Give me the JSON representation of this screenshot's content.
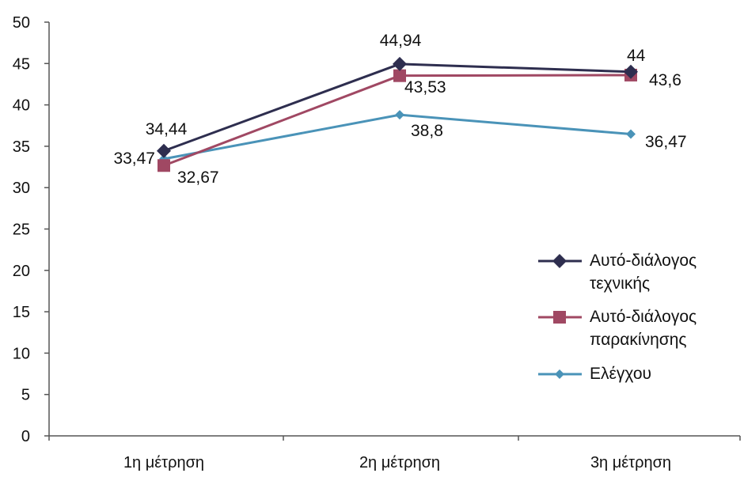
{
  "chart_data": {
    "type": "line",
    "categories": [
      "1η μέτρηση",
      "2η μέτρηση",
      "3η μέτρηση"
    ],
    "ylim": [
      0,
      50
    ],
    "yticks": [
      0,
      5,
      10,
      15,
      20,
      25,
      30,
      35,
      40,
      45,
      50
    ],
    "grid": false,
    "legend_position": "right",
    "series": [
      {
        "name_lines": [
          "Αυτό-διάλογος",
          "τεχνικής"
        ],
        "values": [
          34.44,
          44.94,
          44
        ],
        "labels": [
          "34,44",
          "44,94",
          "44"
        ],
        "color": "#2e2e4f",
        "marker": "diamond"
      },
      {
        "name_lines": [
          "Αυτό-διάλογος",
          "παρακίνησης"
        ],
        "values": [
          32.67,
          43.53,
          43.6
        ],
        "labels": [
          "32,67",
          "43,53",
          "43,6"
        ],
        "color": "#a04863",
        "marker": "square"
      },
      {
        "name_lines": [
          "Ελέγχου"
        ],
        "values": [
          33.47,
          38.8,
          36.47
        ],
        "labels": [
          "33,47",
          "38,8",
          "36,47"
        ],
        "color": "#4a93b8",
        "marker": "diamond-small"
      }
    ]
  }
}
